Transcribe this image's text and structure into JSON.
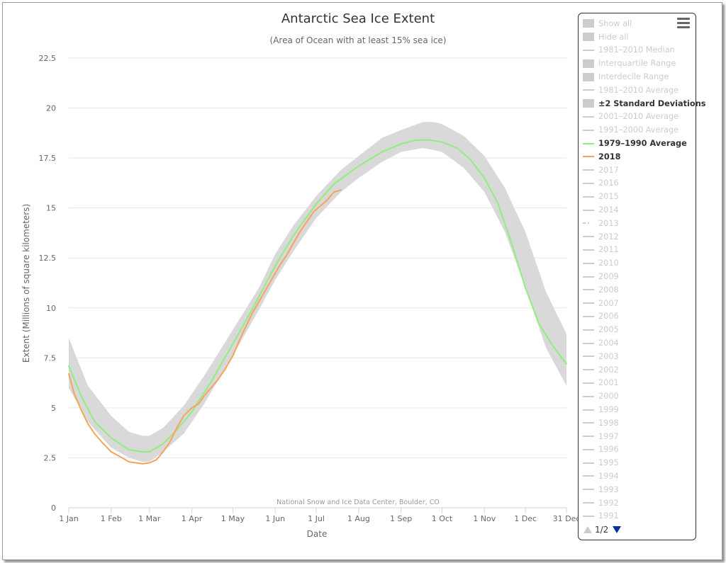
{
  "chart_data": {
    "type": "line",
    "title": "Antarctic Sea Ice Extent",
    "subtitle": "(Area of Ocean with at least 15% sea ice)",
    "xlabel": "Date",
    "ylabel": "Extent (Millions of square kilometers)",
    "credit": "National Snow and Ice Data Center, Boulder, CO",
    "xlim_day": [
      1,
      365
    ],
    "ylim": [
      0,
      22.5
    ],
    "y_ticks": [
      "0",
      "2.5",
      "5",
      "7.5",
      "10",
      "12.5",
      "15",
      "17.5",
      "20",
      "22.5"
    ],
    "x_ticks": [
      {
        "label": "1 Jan",
        "day": 1
      },
      {
        "label": "1 Feb",
        "day": 32
      },
      {
        "label": "1 Mar",
        "day": 60
      },
      {
        "label": "1 Apr",
        "day": 91
      },
      {
        "label": "1 May",
        "day": 121
      },
      {
        "label": "1 Jun",
        "day": 152
      },
      {
        "label": "1 Jul",
        "day": 182
      },
      {
        "label": "1 Aug",
        "day": 213
      },
      {
        "label": "1 Sep",
        "day": 244
      },
      {
        "label": "1 Oct",
        "day": 274
      },
      {
        "label": "1 Nov",
        "day": 305
      },
      {
        "label": "1 Dec",
        "day": 335
      },
      {
        "label": "31 Dec",
        "day": 365
      }
    ],
    "grid": true,
    "legend_position": "right",
    "band": {
      "name": "±2 Standard Deviations",
      "color": "#d9d9d9",
      "x": [
        1,
        15,
        32,
        45,
        55,
        60,
        70,
        85,
        100,
        121,
        140,
        152,
        165,
        182,
        200,
        213,
        230,
        244,
        260,
        268,
        274,
        290,
        305,
        320,
        335,
        350,
        365
      ],
      "lower": [
        6.0,
        4.3,
        3.0,
        2.5,
        2.3,
        2.3,
        2.8,
        3.7,
        5.2,
        7.6,
        9.9,
        11.4,
        12.8,
        14.5,
        15.8,
        16.5,
        17.3,
        17.8,
        18.0,
        17.9,
        17.8,
        17.0,
        15.8,
        13.8,
        11.0,
        8.0,
        6.1
      ],
      "upper": [
        8.5,
        6.1,
        4.6,
        3.8,
        3.6,
        3.6,
        4.0,
        5.1,
        6.6,
        8.9,
        11.0,
        12.7,
        14.1,
        15.6,
        16.9,
        17.6,
        18.5,
        18.9,
        19.3,
        19.3,
        19.2,
        18.6,
        17.6,
        16.0,
        13.8,
        10.8,
        8.7
      ]
    },
    "series": [
      {
        "name": "1979–1990 Average",
        "color": "#90ee7e",
        "x": [
          1,
          10,
          20,
          32,
          45,
          55,
          60,
          70,
          80,
          91,
          105,
          121,
          135,
          152,
          165,
          182,
          195,
          213,
          230,
          244,
          255,
          265,
          274,
          285,
          295,
          305,
          315,
          325,
          335,
          345,
          355,
          365
        ],
        "y": [
          7.1,
          5.6,
          4.3,
          3.5,
          2.9,
          2.8,
          2.8,
          3.2,
          3.9,
          4.8,
          6.3,
          8.2,
          9.9,
          12.1,
          13.6,
          15.2,
          16.2,
          17.1,
          17.8,
          18.2,
          18.4,
          18.4,
          18.3,
          18.0,
          17.4,
          16.5,
          15.2,
          13.2,
          11.0,
          9.2,
          8.1,
          7.2
        ]
      },
      {
        "name": "2018",
        "color": "#f7a35c",
        "x": [
          1,
          5,
          10,
          15,
          20,
          25,
          32,
          40,
          45,
          50,
          55,
          60,
          65,
          70,
          75,
          80,
          85,
          91,
          96,
          100,
          105,
          110,
          115,
          121,
          126,
          130,
          135,
          140,
          145,
          150,
          155,
          160,
          165,
          170,
          175,
          180,
          185,
          190,
          195,
          200
        ],
        "y": [
          6.7,
          5.7,
          4.9,
          4.2,
          3.7,
          3.3,
          2.8,
          2.5,
          2.3,
          2.25,
          2.2,
          2.25,
          2.4,
          2.8,
          3.3,
          4.0,
          4.6,
          5.0,
          5.2,
          5.6,
          6.0,
          6.4,
          6.9,
          7.6,
          8.4,
          9.0,
          9.7,
          10.3,
          10.9,
          11.5,
          12.1,
          12.6,
          13.2,
          13.8,
          14.3,
          14.8,
          15.1,
          15.4,
          15.8,
          15.9
        ]
      }
    ]
  },
  "legend": {
    "items": [
      {
        "label": "Show all",
        "symbol": "box",
        "active": false
      },
      {
        "label": "Hide all",
        "symbol": "box",
        "active": false
      },
      {
        "label": "1981–2010 Median",
        "symbol": "line",
        "active": false
      },
      {
        "label": "Interquartile Range",
        "symbol": "box",
        "active": false
      },
      {
        "label": "Interdecile Range",
        "symbol": "box",
        "active": false
      },
      {
        "label": "1981–2010 Average",
        "symbol": "line",
        "active": false
      },
      {
        "label": "±2 Standard Deviations",
        "symbol": "box",
        "active": true,
        "color": "#cccccc"
      },
      {
        "label": "2001–2010 Average",
        "symbol": "line",
        "active": false
      },
      {
        "label": "1991–2000 Average",
        "symbol": "line",
        "active": false
      },
      {
        "label": "1979–1990 Average",
        "symbol": "line",
        "active": true,
        "color": "#90ee7e"
      },
      {
        "label": "2018",
        "symbol": "line",
        "active": true,
        "color": "#f7a35c"
      },
      {
        "label": "2017",
        "symbol": "line",
        "active": false
      },
      {
        "label": "2016",
        "symbol": "line",
        "active": false
      },
      {
        "label": "2015",
        "symbol": "line",
        "active": false
      },
      {
        "label": "2014",
        "symbol": "line",
        "active": false
      },
      {
        "label": "2013",
        "symbol": "dash",
        "active": false
      },
      {
        "label": "2012",
        "symbol": "line",
        "active": false
      },
      {
        "label": "2011",
        "symbol": "line",
        "active": false
      },
      {
        "label": "2010",
        "symbol": "line",
        "active": false
      },
      {
        "label": "2009",
        "symbol": "line",
        "active": false
      },
      {
        "label": "2008",
        "symbol": "line",
        "active": false
      },
      {
        "label": "2007",
        "symbol": "line",
        "active": false
      },
      {
        "label": "2006",
        "symbol": "line",
        "active": false
      },
      {
        "label": "2005",
        "symbol": "line",
        "active": false
      },
      {
        "label": "2004",
        "symbol": "line",
        "active": false
      },
      {
        "label": "2003",
        "symbol": "line",
        "active": false
      },
      {
        "label": "2002",
        "symbol": "line",
        "active": false
      },
      {
        "label": "2001",
        "symbol": "line",
        "active": false
      },
      {
        "label": "2000",
        "symbol": "line",
        "active": false
      },
      {
        "label": "1999",
        "symbol": "line",
        "active": false
      },
      {
        "label": "1998",
        "symbol": "line",
        "active": false
      },
      {
        "label": "1997",
        "symbol": "line",
        "active": false
      },
      {
        "label": "1996",
        "symbol": "line",
        "active": false
      },
      {
        "label": "1995",
        "symbol": "line",
        "active": false
      },
      {
        "label": "1994",
        "symbol": "line",
        "active": false
      },
      {
        "label": "1993",
        "symbol": "line",
        "active": false
      },
      {
        "label": "1992",
        "symbol": "line",
        "active": false
      },
      {
        "label": "1991",
        "symbol": "line",
        "active": false
      }
    ],
    "pager": "1/2",
    "menu_icon": "hamburger-menu-icon"
  }
}
